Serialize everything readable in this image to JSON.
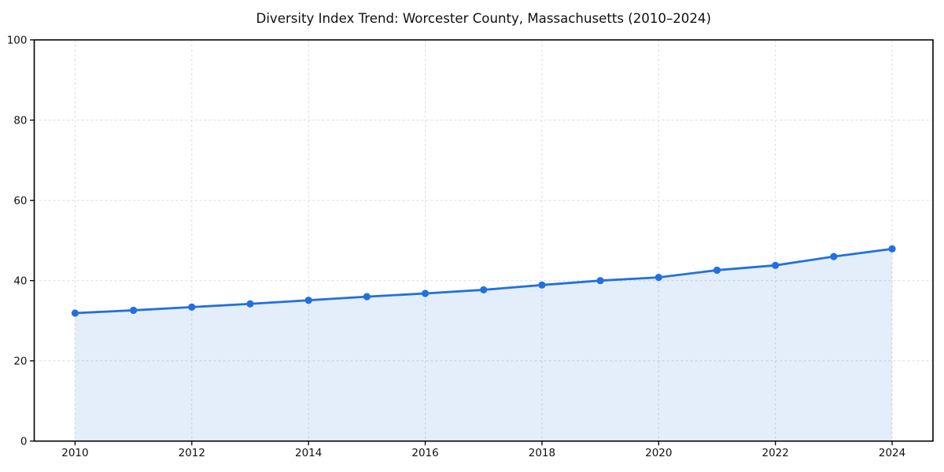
{
  "chart_data": {
    "type": "line",
    "title": "Diversity Index Trend: Worcester County, Massachusetts (2010–2024)",
    "x": [
      2010,
      2011,
      2012,
      2013,
      2014,
      2015,
      2016,
      2017,
      2018,
      2019,
      2020,
      2021,
      2022,
      2023,
      2024
    ],
    "series": [
      {
        "name": "Diversity Index",
        "values": [
          31.9,
          32.6,
          33.4,
          34.2,
          35.1,
          36.0,
          36.8,
          37.7,
          38.9,
          40.0,
          40.8,
          42.6,
          43.8,
          46.0,
          47.9
        ]
      }
    ],
    "xlabel": "",
    "ylabel": "",
    "xlim": [
      2009.3,
      2024.7
    ],
    "ylim": [
      0,
      100
    ],
    "xticks": [
      2010,
      2012,
      2014,
      2016,
      2018,
      2020,
      2022,
      2024
    ],
    "yticks": [
      0,
      20,
      40,
      60,
      80,
      100
    ],
    "grid": true,
    "grid_style": "dashed",
    "legend_position": "none",
    "marker": "circle",
    "fill_under_line": true,
    "line_color": "#2270e0",
    "fill_color": "#2270e0",
    "fill_opacity": 0.12,
    "grid_color": "#dcdcdc",
    "axis_color": "#000000",
    "text_color": "#111111",
    "background_color": "#ffffff"
  }
}
